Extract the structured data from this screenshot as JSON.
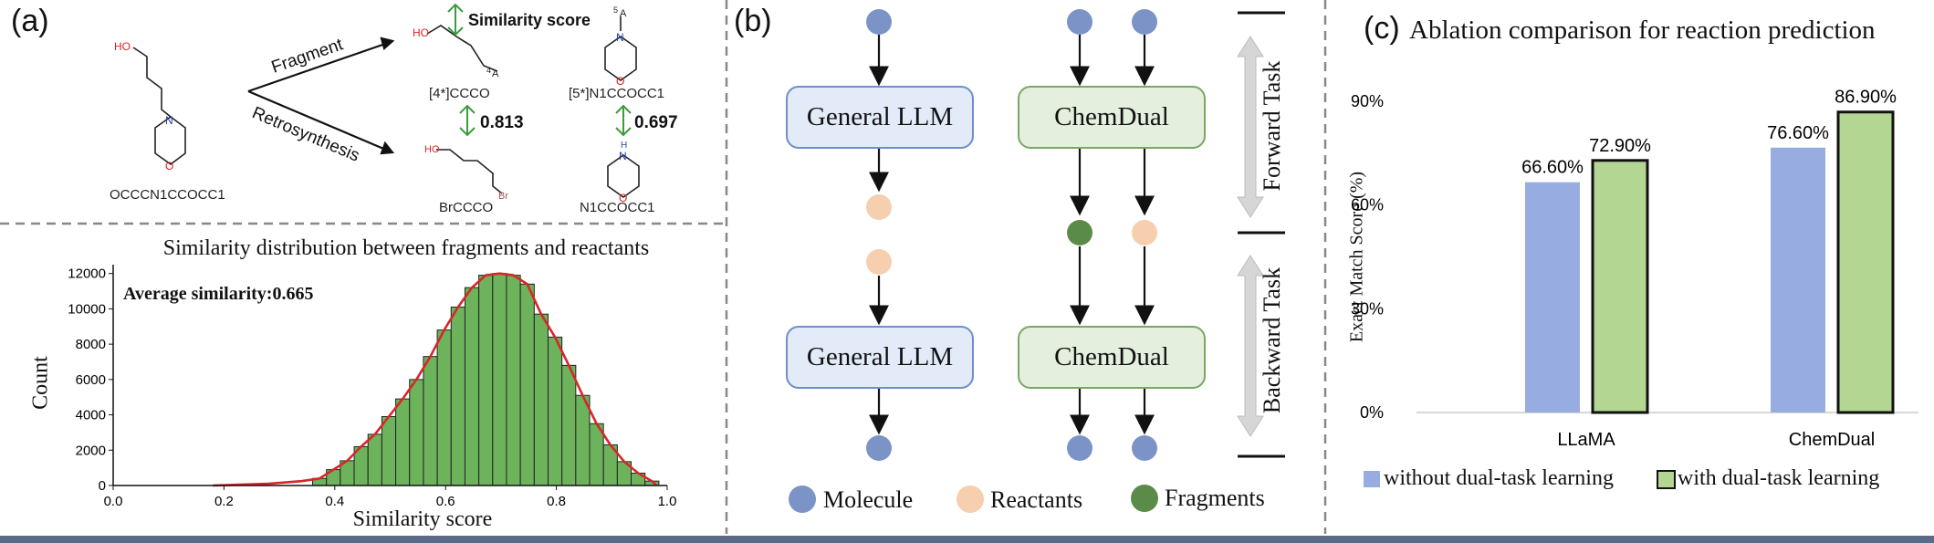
{
  "panel_a": {
    "label": "(a)",
    "molecule_smiles": "OCCCN1CCOCC1",
    "fragment_label": "Fragment",
    "retro_label": "Retrosynthesis",
    "similarity_header": "Similarity score",
    "frag1_smiles": "[4*]CCCO",
    "frag2_smiles": "[5*]N1CCOCC1",
    "react1_smiles": "BrCCCO",
    "react2_smiles": "N1CCOCC1",
    "score1": "0.813",
    "score2": "0.697",
    "atoms": {
      "ho": "HO",
      "n": "N",
      "o": "O",
      "nh": "H",
      "br": "Br",
      "a4": "A",
      "a5": "A",
      "sup4": "4",
      "sup5": "5"
    }
  },
  "histogram": {
    "title": "Similarity distribution between fragments and reactants",
    "annotation": "Average similarity:0.665",
    "xlabel": "Similarity score",
    "ylabel": "Count"
  },
  "panel_b": {
    "label": "(b)",
    "general_llm": "General LLM",
    "chemdual": "ChemDual",
    "forward_task": "Forward Task",
    "backward_task": "Backward Task",
    "legend": [
      {
        "label": "Molecule",
        "color": "#7b93c6"
      },
      {
        "label": "Reactants",
        "color": "#f5cfae"
      },
      {
        "label": "Fragments",
        "color": "#5b8b48"
      }
    ]
  },
  "panel_c": {
    "label": "(c)"
  },
  "chart_data": [
    {
      "type": "bar",
      "title": "Similarity distribution between fragments and reactants",
      "xlabel": "Similarity score",
      "ylabel": "Count",
      "xlim": [
        0.0,
        1.0
      ],
      "ylim": [
        0,
        12500
      ],
      "xticks": [
        "0.0",
        "0.2",
        "0.4",
        "0.6",
        "0.8",
        "1.0"
      ],
      "yticks": [
        "0",
        "2000",
        "4000",
        "6000",
        "8000",
        "10000",
        "12000"
      ],
      "bin_start": 0.36,
      "bin_width": 0.025,
      "values": [
        400,
        900,
        1400,
        2200,
        2900,
        3900,
        4900,
        6000,
        7300,
        8800,
        10100,
        11200,
        11900,
        12000,
        11900,
        11400,
        9700,
        8400,
        6800,
        5100,
        3500,
        2300,
        1350,
        700,
        250
      ],
      "color": "#6db35c",
      "kde_color": "#d62728",
      "grid": false
    },
    {
      "type": "bar",
      "title": "Ablation comparison for reaction prediction",
      "ylabel": "Exact Match Score (%)",
      "categories": [
        "LLaMA",
        "ChemDual"
      ],
      "ylim": [
        0,
        90
      ],
      "yticks": [
        "0%",
        "30%",
        "60%",
        "90%"
      ],
      "series": [
        {
          "name": "without dual-task learning",
          "values": [
            66.6,
            76.6
          ],
          "labels": [
            "66.60%",
            "76.60%"
          ],
          "color": "#97ace0"
        },
        {
          "name": "with dual-task learning",
          "values": [
            72.9,
            86.9
          ],
          "labels": [
            "72.90%",
            "86.90%"
          ],
          "color": "#b3d692"
        }
      ],
      "legend_position": "bottom",
      "grid": false
    }
  ]
}
